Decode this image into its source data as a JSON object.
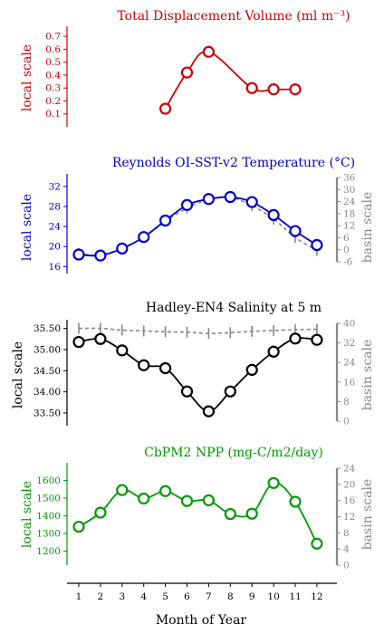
{
  "chart_data": [
    {
      "type": "line",
      "title": "Total Displacement Volume (ml m⁻³)",
      "ylabel": "local scale",
      "color": "#cc0000",
      "ylim": [
        0,
        0.75
      ],
      "yticks": [
        0.1,
        0.2,
        0.3,
        0.4,
        0.5,
        0.6,
        0.7
      ],
      "x": [
        5,
        6,
        7,
        9,
        10,
        11
      ],
      "values": [
        0.14,
        0.42,
        0.58,
        0.3,
        0.29,
        0.29
      ]
    },
    {
      "type": "line",
      "title": "Reynolds OI-SST-v2 Temperature (°C)",
      "ylabel": "local scale",
      "ylabel2": "basin scale",
      "color": "#0000cc",
      "ylim": [
        14.6,
        33.8
      ],
      "yticks": [
        16,
        20,
        24,
        28,
        32
      ],
      "ylim2": [
        -6,
        36
      ],
      "yticks2": [
        -6,
        0,
        6,
        12,
        18,
        24,
        30,
        36
      ],
      "x": [
        1,
        2,
        3,
        4,
        5,
        6,
        7,
        8,
        9,
        10,
        11,
        12
      ],
      "values": [
        18.4,
        18.2,
        19.6,
        21.9,
        25.2,
        28.3,
        29.5,
        29.9,
        28.9,
        26.3,
        23.1,
        20.3
      ],
      "basin_values": [
        18.6,
        18.3,
        19.7,
        21.8,
        25.0,
        27.7,
        29.4,
        29.8,
        28.2,
        25.5,
        21.8,
        19.2
      ]
    },
    {
      "type": "line",
      "title": "Hadley-EN4 Salinity at 5 m",
      "ylabel": "local scale",
      "ylabel2": "basin scale",
      "color": "#000000",
      "ylim": [
        33.2,
        35.62
      ],
      "yticks": [
        33.5,
        34.0,
        34.5,
        35.0,
        35.5
      ],
      "yticklabels": [
        "33.50",
        "34.00",
        "34.50",
        "35.00",
        "35.50"
      ],
      "ylim2": [
        0,
        40
      ],
      "yticks2": [
        0,
        8,
        16,
        24,
        32,
        40
      ],
      "x": [
        1,
        2,
        3,
        4,
        5,
        6,
        7,
        8,
        9,
        10,
        11,
        12
      ],
      "values": [
        35.18,
        35.25,
        34.98,
        34.63,
        34.56,
        34.01,
        33.54,
        34.01,
        34.52,
        34.95,
        35.26,
        35.23
      ],
      "basin_values": [
        35.5,
        35.5,
        35.46,
        35.44,
        35.42,
        35.41,
        35.38,
        35.4,
        35.43,
        35.45,
        35.47,
        35.48
      ]
    },
    {
      "type": "line",
      "title": "CbPM2 NPP (mg-C/m2/day)",
      "ylabel": "local scale",
      "ylabel2": "basin scale",
      "color": "#009900",
      "ylim": [
        1120,
        1680
      ],
      "yticks": [
        1200,
        1300,
        1400,
        1500,
        1600
      ],
      "ylim2": [
        0,
        24
      ],
      "yticks2": [
        0,
        4,
        8,
        12,
        16,
        20,
        24
      ],
      "x": [
        1,
        2,
        3,
        4,
        5,
        6,
        7,
        8,
        9,
        10,
        11,
        12
      ],
      "values": [
        1338,
        1418,
        1546,
        1498,
        1540,
        1484,
        1488,
        1410,
        1412,
        1586,
        1480,
        1242
      ]
    }
  ],
  "xaxis": {
    "label": "Month of Year",
    "ticks": [
      1,
      2,
      3,
      4,
      5,
      6,
      7,
      8,
      9,
      10,
      11,
      12
    ]
  },
  "basin_color": "#888888"
}
